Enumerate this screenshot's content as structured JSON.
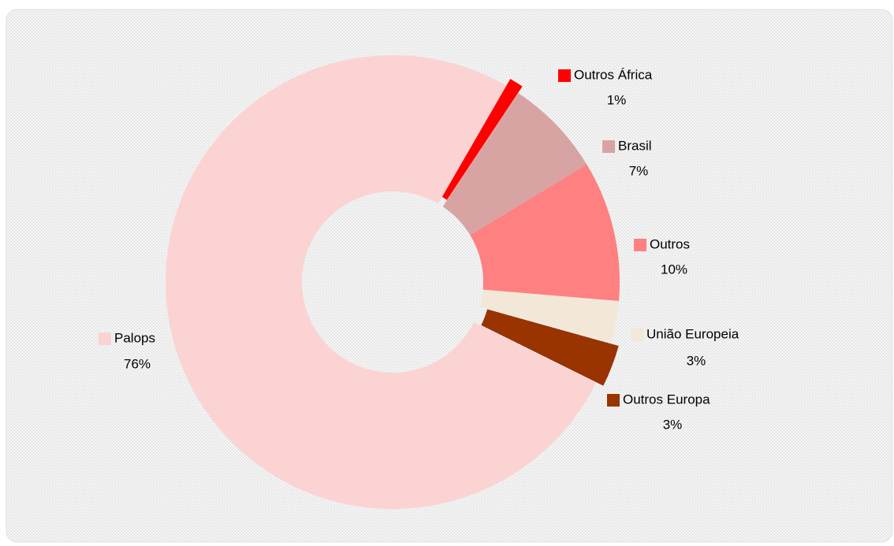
{
  "chart_data": {
    "type": "donut",
    "categories": [
      "Outros África",
      "Brasil",
      "Outros",
      "União Europeia",
      "Outros   Europa",
      "Palops"
    ],
    "values": [
      1,
      7,
      10,
      3,
      3,
      76
    ],
    "value_labels": [
      "1%",
      "7%",
      "10%",
      "3%",
      "3%",
      "76%"
    ],
    "colors": [
      "#ff0000",
      "#d8a3a3",
      "#ff8080",
      "#f3e8d8",
      "#993300",
      "#fbd3d3"
    ]
  }
}
